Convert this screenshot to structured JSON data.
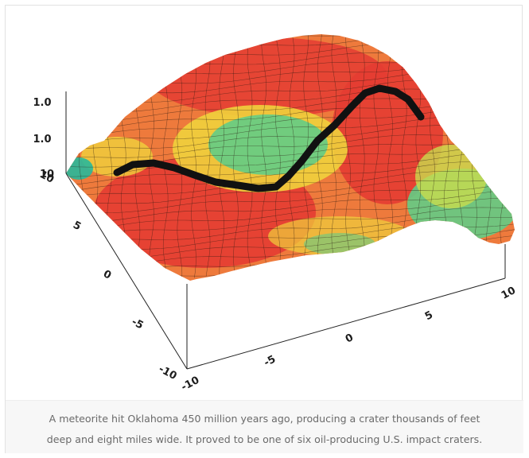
{
  "chart_data": {
    "type": "surface",
    "title": "",
    "xlabel": "",
    "ylabel": "",
    "zlabel": "",
    "x_ticks": [
      "-10",
      "-5",
      "0",
      "5",
      "10"
    ],
    "y_ticks": [
      "-10",
      "-5",
      "0",
      "5",
      "10"
    ],
    "z_ticks": [
      "10",
      "1.0",
      "1.0"
    ],
    "xlim": [
      -10,
      10
    ],
    "ylim": [
      -10,
      10
    ],
    "colormap": [
      "#28b89a",
      "#63cc85",
      "#c9dc4e",
      "#f0d23c",
      "#ee7a3c",
      "#e43c32"
    ],
    "ridge_line_color": "#111111",
    "grid": true
  },
  "caption": {
    "line1": "A meteorite hit Oklahoma 450 million years ago, producing a crater thousands of feet",
    "line2": "deep and eight miles wide. It proved to be one of six oil-producing U.S. impact craters."
  }
}
